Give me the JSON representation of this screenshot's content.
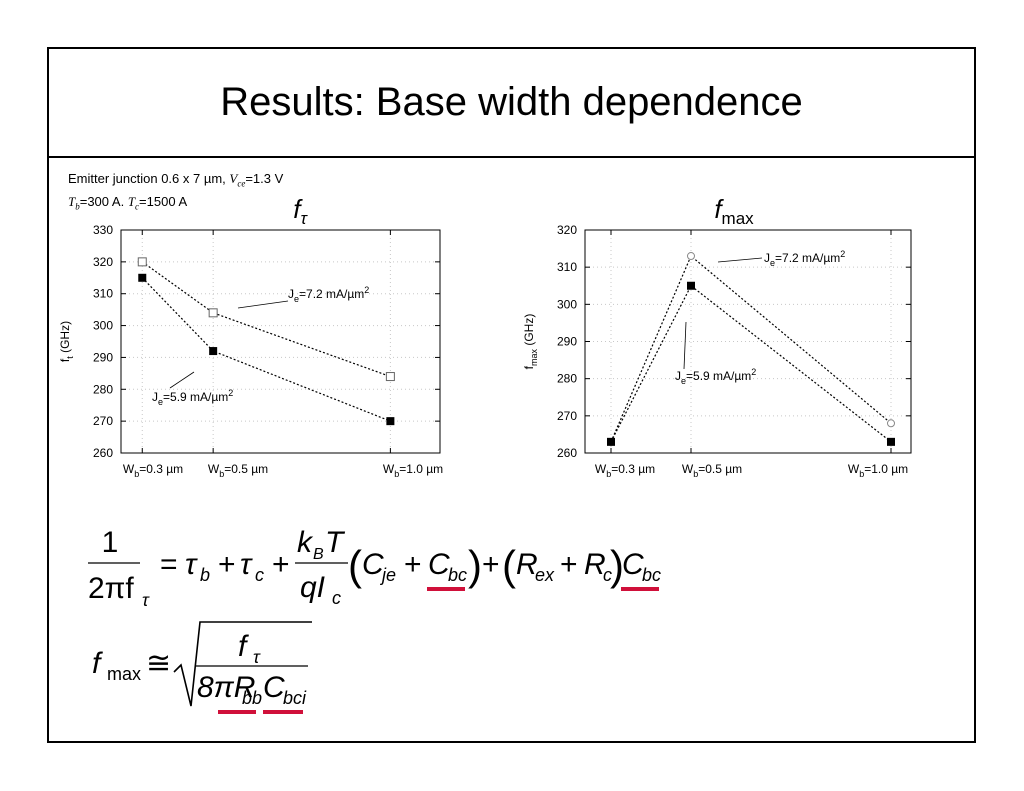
{
  "slide": {
    "title": "Results: Base width dependence",
    "caption": {
      "line1_text": "Emitter junction 0.6 x 7 µm, ",
      "line1_var": "V",
      "line1_var_sub": "ce",
      "line1_value": "=1.3 V",
      "line2_var1": "T",
      "line2_var1_sub": "b",
      "line2_val1": "=300 A. ",
      "line2_var2": "T",
      "line2_var2_sub": "c",
      "line2_val2": "=1500 A"
    }
  },
  "chart_data": [
    {
      "type": "line",
      "title": "fτ",
      "ylabel": "f_t (GHz)",
      "ylim": [
        260,
        330
      ],
      "yticks": [
        260,
        270,
        280,
        290,
        300,
        310,
        320,
        330
      ],
      "categories": [
        "W_b=0.3 µm",
        "W_b=0.5 µm",
        "W_b=1.0 µm"
      ],
      "x": [
        0.3,
        0.5,
        1.0
      ],
      "grid": true,
      "series": [
        {
          "name": "J_e=7.2 mA/µm^2",
          "marker": "open-square",
          "values": [
            320,
            304,
            284
          ]
        },
        {
          "name": "J_e=5.9 mA/µm^2",
          "marker": "filled-square",
          "values": [
            315,
            292,
            270
          ]
        }
      ]
    },
    {
      "type": "line",
      "title": "fmax",
      "ylabel": "f_max (GHz)",
      "ylim": [
        260,
        320
      ],
      "yticks": [
        260,
        270,
        280,
        290,
        300,
        310,
        320
      ],
      "categories": [
        "W_b=0.3 µm",
        "W_b=0.5 µm",
        "W_b=1.0 µm"
      ],
      "x": [
        0.3,
        0.5,
        1.0
      ],
      "grid": true,
      "series": [
        {
          "name": "J_e=7.2 mA/µm^2",
          "marker": "open-circle",
          "values": [
            263,
            313,
            268
          ]
        },
        {
          "name": "J_e=5.9 mA/µm^2",
          "marker": "filled-square",
          "values": [
            263,
            305,
            263
          ]
        }
      ]
    }
  ],
  "equations": {
    "eq1": {
      "lhs_num": "1",
      "lhs_den": "2πf",
      "lhs_den_sub": "τ",
      "eq_sign": "=",
      "tau": "τ",
      "tau_b_sub": "b",
      "plus": "+",
      "tau_c_sub": "c",
      "frac_num": "k",
      "frac_num_sub": "B",
      "frac_num_T": "T",
      "frac_den": "qI",
      "frac_den_sub": "c",
      "C": "C",
      "C_je_sub": "je",
      "C_bc_sub": "bc",
      "R": "R",
      "R_ex_sub": "ex",
      "R_c_sub": "c",
      "underline_color": "#d0103a"
    },
    "eq2": {
      "f": "f",
      "f_sub": "max",
      "approx": "≅",
      "num": "f",
      "num_sub": "τ",
      "den_prefix": "8πR",
      "den_R_sub": "bb",
      "den_C": "C",
      "den_C_sub": "bci",
      "underline_color": "#d0103a"
    }
  }
}
